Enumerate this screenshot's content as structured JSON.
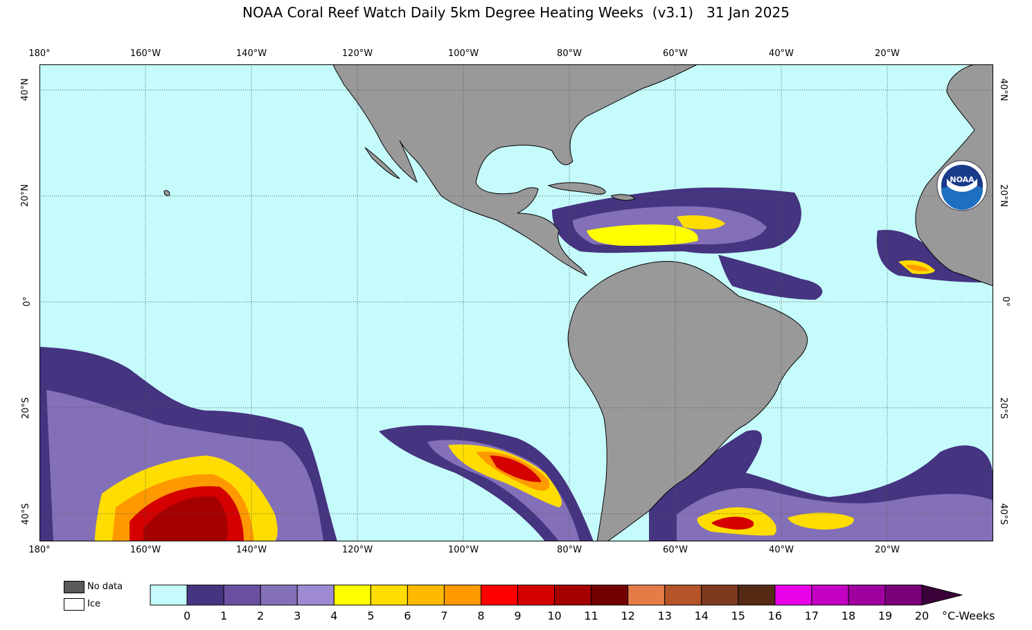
{
  "title": "NOAA Coral Reef Watch Daily 5km Degree Heating Weeks  (v3.1)   31 Jan 2025",
  "lon_labels": [
    "180°",
    "160°W",
    "140°W",
    "120°W",
    "100°W",
    "80°W",
    "60°W",
    "40°W",
    "20°W"
  ],
  "lat_labels_left": [
    "40°N",
    "20°N",
    "0°",
    "20°S",
    "40°S"
  ],
  "lat_labels_right": [
    "40°N",
    "20°N",
    "0°",
    "20°S",
    "40°S"
  ],
  "legend": {
    "nodata_label": "No data",
    "ice_label": "Ice",
    "nodata_color": "#5a5a5a",
    "ice_color": "#ffffff",
    "ticks": [
      "0",
      "1",
      "2",
      "3",
      "4",
      "5",
      "6",
      "7",
      "8",
      "9",
      "10",
      "11",
      "12",
      "13",
      "14",
      "15",
      "16",
      "17",
      "18",
      "19",
      "20"
    ],
    "units": "°C-Weeks",
    "colors": [
      "#c6fbfb",
      "#453480",
      "#6a4fa0",
      "#8470b8",
      "#9e8ad2",
      "#ffff00",
      "#ffdd00",
      "#ffba00",
      "#ff9900",
      "#ff0000",
      "#d40000",
      "#a50000",
      "#720000",
      "#e57c48",
      "#b45428",
      "#7e3a1f",
      "#542a14",
      "#e900e9",
      "#c300c3",
      "#a000a0",
      "#7a007a",
      "#3a0038"
    ]
  },
  "logo": {
    "text": "NOAA"
  },
  "colors": {
    "ocean": "#c6fbfb",
    "land": "#999999"
  }
}
